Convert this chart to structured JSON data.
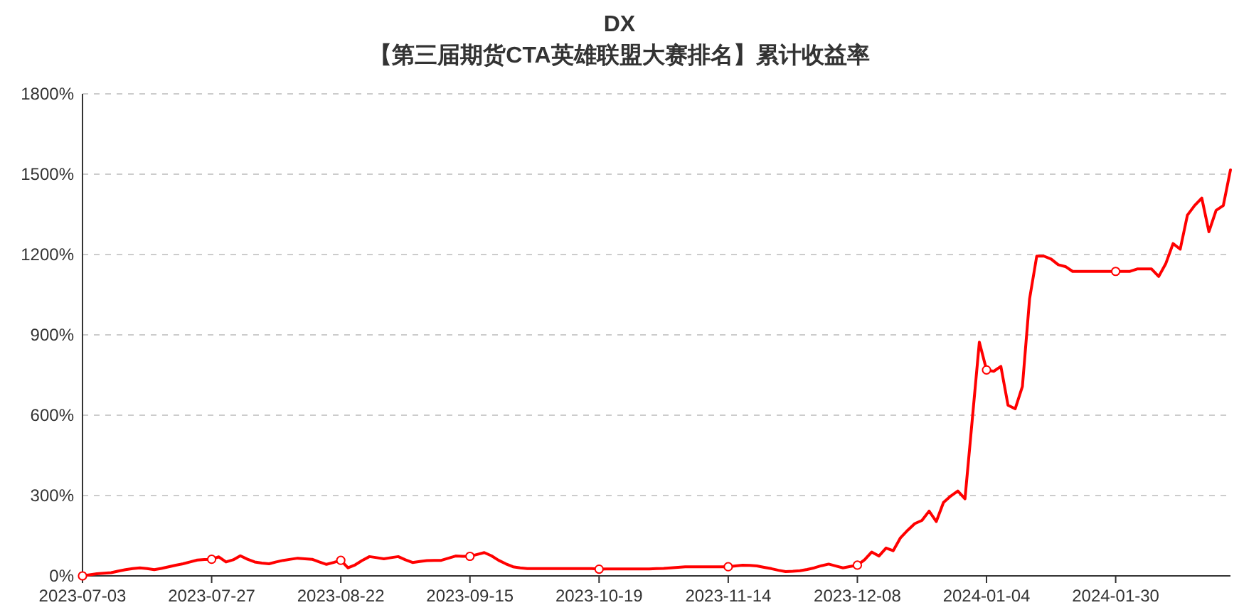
{
  "chart_data": {
    "type": "line",
    "title": "DX",
    "subtitle": "【第三届期货CTA英雄联盟大赛排名】累计收益率",
    "categories": [
      "2023-07-03",
      null,
      null,
      null,
      null,
      null,
      null,
      null,
      null,
      null,
      null,
      null,
      null,
      null,
      null,
      null,
      null,
      null,
      "2023-07-27",
      null,
      null,
      null,
      null,
      null,
      null,
      null,
      null,
      null,
      null,
      null,
      null,
      null,
      null,
      null,
      null,
      null,
      "2023-08-22",
      null,
      null,
      null,
      null,
      null,
      null,
      null,
      null,
      null,
      null,
      null,
      null,
      null,
      null,
      null,
      null,
      null,
      "2023-09-15",
      null,
      null,
      null,
      null,
      null,
      null,
      null,
      null,
      null,
      null,
      null,
      null,
      null,
      null,
      null,
      null,
      null,
      "2023-10-19",
      null,
      null,
      null,
      null,
      null,
      null,
      null,
      null,
      null,
      null,
      null,
      null,
      null,
      null,
      null,
      null,
      null,
      "2023-11-14",
      null,
      null,
      null,
      null,
      null,
      null,
      null,
      null,
      null,
      null,
      null,
      null,
      null,
      null,
      null,
      null,
      null,
      "2023-12-08",
      null,
      null,
      null,
      null,
      null,
      null,
      null,
      null,
      null,
      null,
      null,
      null,
      null,
      null,
      null,
      null,
      null,
      "2024-01-04",
      null,
      null,
      null,
      null,
      null,
      null,
      null,
      null,
      null,
      null,
      null,
      null,
      null,
      null,
      null,
      null,
      null,
      "2024-01-30",
      null,
      null,
      null,
      null,
      null,
      null,
      null,
      null,
      null,
      null,
      null,
      null,
      null,
      null,
      null,
      null
    ],
    "ylim": [
      0,
      1800
    ],
    "yticks": [
      {
        "value": 0,
        "label": "0%"
      },
      {
        "value": 300,
        "label": "300%"
      },
      {
        "value": 600,
        "label": "600%"
      },
      {
        "value": 900,
        "label": "900%"
      },
      {
        "value": 1200,
        "label": "1200%"
      },
      {
        "value": 1500,
        "label": "1500%"
      },
      {
        "value": 1800,
        "label": "1800%"
      }
    ],
    "grid": "y",
    "line_style": "solid",
    "series": [
      {
        "color": "#ff0000",
        "values": [
          0,
          4,
          8,
          10,
          12,
          18,
          23,
          27,
          30,
          27,
          23,
          28,
          34,
          40,
          45,
          52,
          59,
          61,
          62,
          71,
          52,
          60,
          75,
          62,
          52,
          48,
          45,
          52,
          58,
          62,
          66,
          64,
          62,
          52,
          43,
          50,
          58,
          30,
          41,
          58,
          72,
          68,
          64,
          68,
          72,
          60,
          50,
          54,
          57,
          58,
          58,
          66,
          74,
          73,
          73,
          80,
          87,
          75,
          58,
          45,
          34,
          30,
          27,
          27,
          27,
          27,
          27,
          27,
          27,
          27,
          27,
          27,
          25,
          26,
          26,
          26,
          26,
          26,
          26,
          26,
          27,
          28,
          30,
          32,
          34,
          34,
          34,
          34,
          34,
          34,
          34,
          37,
          40,
          39,
          37,
          32,
          27,
          21,
          16,
          17,
          19,
          24,
          30,
          38,
          44,
          37,
          30,
          35,
          40,
          60,
          89,
          74,
          104,
          94,
          142,
          170,
          195,
          207,
          242,
          203,
          274,
          298,
          317,
          288,
          580,
          873,
          769,
          764,
          782,
          637,
          624,
          707,
          1034,
          1194,
          1194,
          1183,
          1162,
          1155,
          1137,
          1137,
          1137,
          1137,
          1137,
          1137,
          1137,
          1137,
          1137,
          1146,
          1146,
          1146,
          1118,
          1167,
          1241,
          1220,
          1347,
          1383,
          1411,
          1285,
          1365,
          1383,
          1516
        ]
      },
      {
        "type": "scatter",
        "marker": "circle",
        "color": "#ff0000",
        "values": [
          0,
          null,
          null,
          null,
          null,
          null,
          null,
          null,
          null,
          null,
          null,
          null,
          null,
          null,
          null,
          null,
          null,
          null,
          62,
          null,
          null,
          null,
          null,
          null,
          null,
          null,
          null,
          null,
          null,
          null,
          null,
          null,
          null,
          null,
          null,
          null,
          58,
          null,
          null,
          null,
          null,
          null,
          null,
          null,
          null,
          null,
          null,
          null,
          null,
          null,
          null,
          null,
          null,
          null,
          73,
          null,
          null,
          null,
          null,
          null,
          null,
          null,
          null,
          null,
          null,
          null,
          null,
          null,
          null,
          null,
          null,
          null,
          25,
          null,
          null,
          null,
          null,
          null,
          null,
          null,
          null,
          null,
          null,
          null,
          null,
          null,
          null,
          null,
          null,
          null,
          34,
          null,
          null,
          null,
          null,
          null,
          null,
          null,
          null,
          null,
          null,
          null,
          null,
          null,
          null,
          null,
          null,
          null,
          40,
          null,
          null,
          null,
          null,
          null,
          null,
          null,
          null,
          null,
          null,
          null,
          null,
          null,
          null,
          null,
          null,
          null,
          769,
          null,
          null,
          null,
          null,
          null,
          null,
          null,
          null,
          null,
          null,
          null,
          null,
          null,
          null,
          null,
          null,
          null,
          1137,
          null,
          null,
          null,
          null,
          null,
          null,
          null,
          null,
          null,
          null,
          null,
          null,
          null,
          null,
          null,
          null
        ]
      }
    ]
  }
}
